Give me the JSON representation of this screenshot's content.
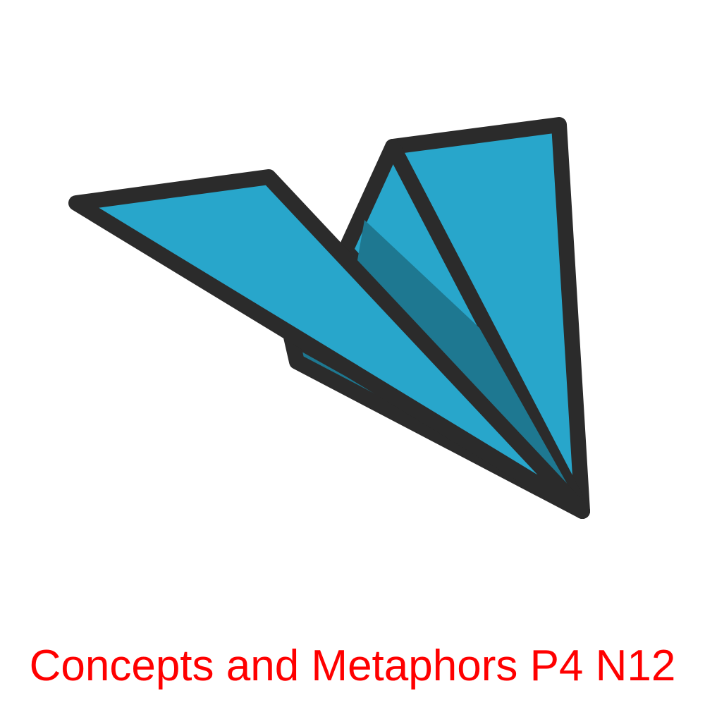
{
  "caption": {
    "text": "Concepts and Metaphors P4 N12",
    "color": "#ff0000"
  },
  "illustration": {
    "icon": "paper-plane-icon",
    "colors": {
      "fill_light": "#28a6cb",
      "fill_dark": "#1e7891",
      "outline": "#2b2b2b",
      "background": "#ffffff"
    }
  }
}
